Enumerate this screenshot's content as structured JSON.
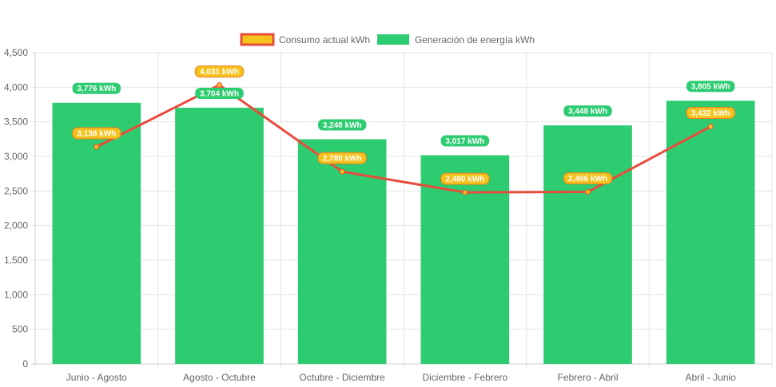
{
  "chart_data": {
    "type": "bar",
    "categories": [
      "Junio - Agosto",
      "Agosto - Octubre",
      "Octubre - Diciembre",
      "Diciembre - Febrero",
      "Febrero - Abril",
      "Abril - Junio"
    ],
    "series": [
      {
        "name": "Consumo actual kWh",
        "type": "line",
        "values": [
          3138,
          4031,
          2780,
          2480,
          2486,
          3432
        ],
        "labels": [
          "3,138 kWh",
          "4,031 kWh",
          "2,780 kWh",
          "2,480 kWh",
          "2,486 kWh",
          "3,432 kWh"
        ],
        "color": "#e74c3c",
        "fill_color": "#f6c21c"
      },
      {
        "name": "Generación de energía kWh",
        "type": "bar",
        "values": [
          3776,
          3704,
          3248,
          3017,
          3448,
          3805
        ],
        "labels": [
          "3,776 kWh",
          "3,704 kWh",
          "3,248 kWh",
          "3,017 kWh",
          "3,448 kWh",
          "3,805 kWh"
        ],
        "color": "#2ecc71"
      }
    ],
    "ylim": [
      0,
      4500
    ],
    "yticks": [
      "0",
      "500",
      "1,000",
      "1,500",
      "2,000",
      "2,500",
      "3,000",
      "3,500",
      "4,000",
      "4,500"
    ],
    "grid": true,
    "legend_position": "top"
  }
}
